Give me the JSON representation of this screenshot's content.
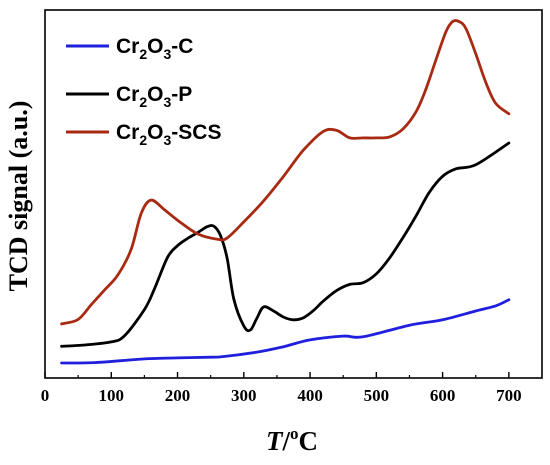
{
  "chart_data": {
    "type": "line",
    "xlabel": {
      "symbol": "T",
      "slash": "/",
      "sup": "o",
      "unit": "C"
    },
    "ylabel": "TCD signal (a.u.)",
    "xlim": [
      0,
      750
    ],
    "x_ticks": [
      0,
      100,
      200,
      300,
      400,
      500,
      600,
      700
    ],
    "y_ticks_labeled": false,
    "grid": false,
    "legend_position": "top-left",
    "series": [
      {
        "name": "Cr2O3-C",
        "name_parts": [
          "Cr",
          "2",
          "O",
          "3",
          "-C"
        ],
        "color": "#1f1fdd",
        "x": [
          25,
          75,
          150,
          200,
          250,
          270,
          320,
          360,
          400,
          450,
          480,
          550,
          600,
          650,
          680,
          700
        ],
        "y": [
          0.3,
          0.4,
          1.5,
          1.8,
          2.0,
          2.2,
          3.5,
          5.1,
          7.1,
          8.2,
          8.0,
          11.4,
          13.0,
          15.6,
          17.1,
          18.9
        ]
      },
      {
        "name": "Cr2O3-P",
        "name_parts": [
          "Cr",
          "2",
          "O",
          "3",
          "-P"
        ],
        "color": "#000000",
        "x": [
          25,
          60,
          100,
          120,
          150,
          165,
          185,
          200,
          215,
          230,
          245,
          255,
          265,
          275,
          285,
          300,
          310,
          320,
          330,
          345,
          360,
          375,
          390,
          405,
          420,
          440,
          460,
          480,
          500,
          520,
          540,
          560,
          580,
          600,
          620,
          650,
          700
        ],
        "y": [
          5.2,
          5.6,
          6.5,
          8.3,
          16.0,
          22.0,
          31.4,
          34.8,
          36.9,
          38.6,
          40.4,
          40.5,
          37.7,
          31.0,
          19.0,
          11.2,
          10.0,
          13.6,
          16.8,
          15.6,
          13.8,
          13.0,
          13.6,
          15.7,
          18.5,
          21.6,
          23.4,
          23.9,
          26.5,
          31.2,
          37.1,
          43.6,
          50.5,
          55.2,
          57.4,
          58.6,
          65.0
        ]
      },
      {
        "name": "Cr2O3-SCS",
        "name_parts": [
          "Cr",
          "2",
          "O",
          "3",
          "-SCS"
        ],
        "color": "#a82a12",
        "x": [
          25,
          50,
          70,
          90,
          110,
          130,
          145,
          160,
          180,
          200,
          230,
          260,
          275,
          300,
          330,
          360,
          390,
          420,
          440,
          460,
          480,
          500,
          520,
          540,
          560,
          575,
          590,
          605,
          615,
          625,
          635,
          650,
          665,
          680,
          700
        ],
        "y": [
          11.8,
          13.1,
          17.5,
          21.8,
          26.2,
          33.7,
          44.2,
          48.2,
          45.4,
          42.3,
          38.3,
          36.7,
          37.1,
          41.8,
          48.0,
          55.2,
          62.9,
          68.4,
          68.7,
          66.5,
          66.5,
          66.5,
          66.8,
          69.1,
          74.2,
          80.9,
          89.5,
          97.7,
          100.7,
          100.7,
          98.7,
          91.3,
          82.9,
          76.7,
          73.6
        ]
      }
    ]
  }
}
